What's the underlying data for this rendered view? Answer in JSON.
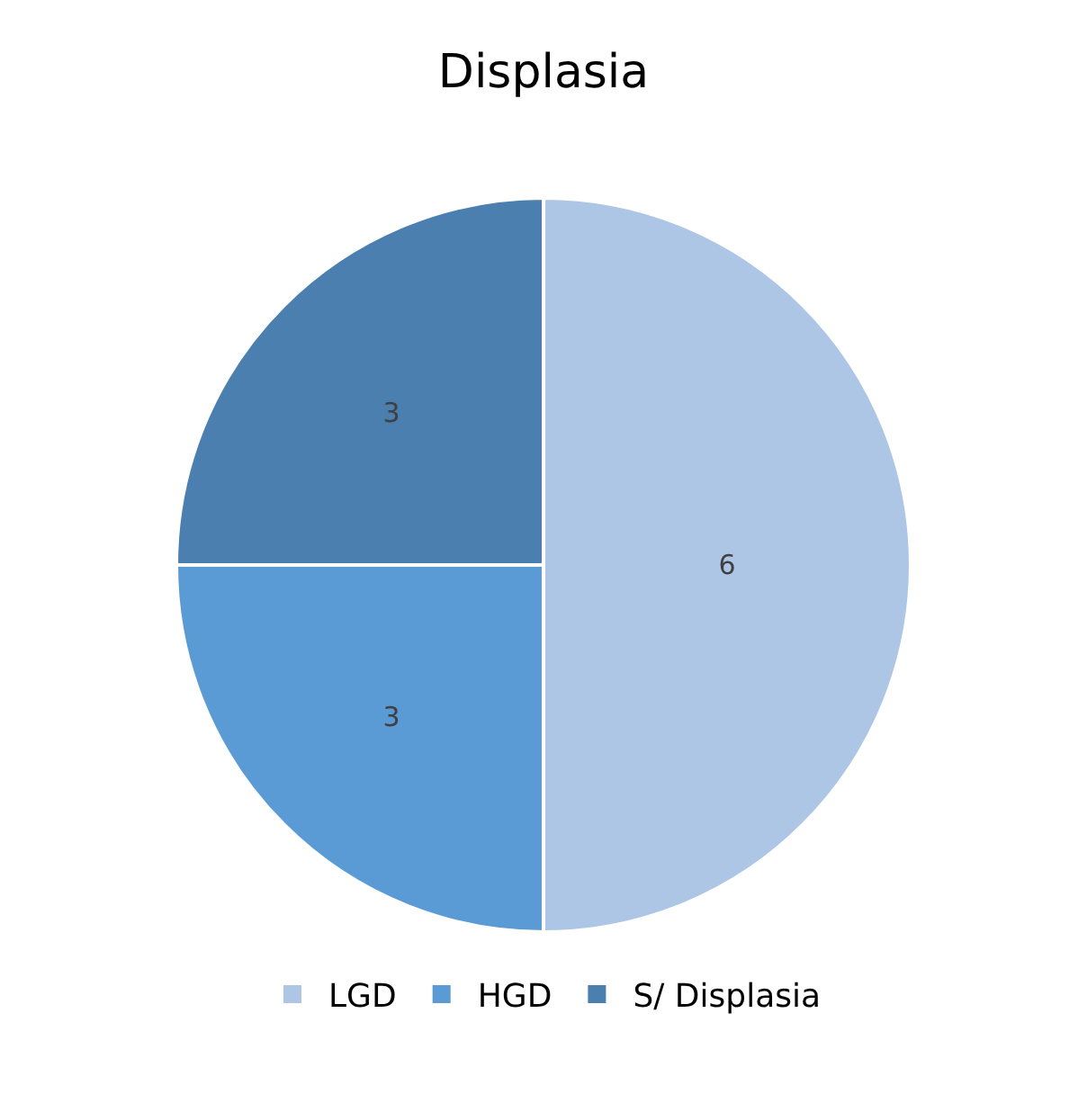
{
  "chart_data": {
    "type": "pie",
    "title": "Displasia",
    "categories": [
      "LGD",
      "HGD",
      "S/ Displasia"
    ],
    "values": [
      6,
      3,
      3
    ],
    "colors": [
      "#adc6e5",
      "#5b9bd5",
      "#4a7fb0"
    ],
    "data_labels": true,
    "legend": "bottom"
  }
}
